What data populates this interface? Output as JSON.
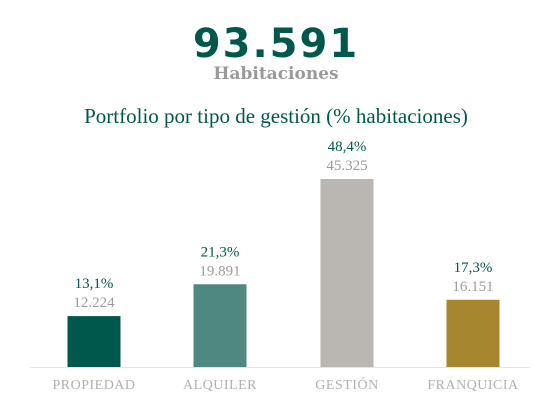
{
  "kpi": {
    "value": "93.591",
    "label": "Habitaciones"
  },
  "colors": {
    "primary": "#00574B",
    "categories": [
      "#00574B",
      "#4E8880",
      "#BAB6B2",
      "#A6862F"
    ],
    "axis": "#e4e4e4"
  },
  "chart_data": {
    "type": "bar",
    "title": "Portfolio por tipo de gestión (% habitaciones)",
    "categories": [
      "PROPIEDAD",
      "ALQUILER",
      "GESTIÓN",
      "FRANQUICIA"
    ],
    "values": [
      13.1,
      21.3,
      48.4,
      17.3
    ],
    "value_labels": [
      "13,1%",
      "21,3%",
      "48,4%",
      "17,3%"
    ],
    "secondary_labels": [
      "12.224",
      "19.891",
      "45.325",
      "16.151"
    ],
    "xlabel": "",
    "ylabel": "",
    "ylim": [
      0,
      50
    ],
    "grid": false,
    "legend": "none"
  }
}
